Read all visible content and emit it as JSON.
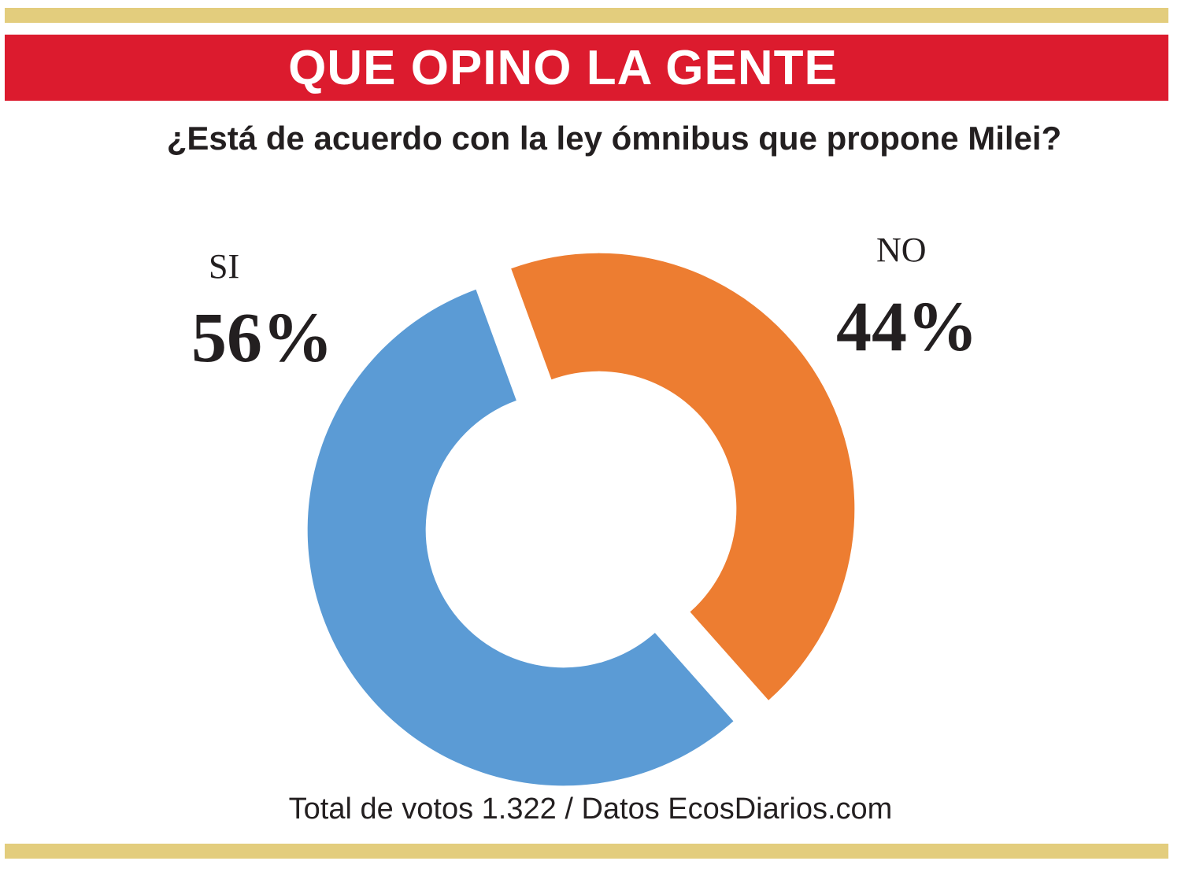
{
  "header": {
    "title": "QUE OPINO LA GENTE"
  },
  "question": "¿Está de acuerdo con la ley ómnibus que propone Milei?",
  "footer": "Total de votos 1.322 / Datos EcosDiarios.com",
  "colors": {
    "header_band": "#dc1b2e",
    "gold_rule": "#e3cd7d",
    "si": "#5b9bd5",
    "no": "#ed7d31"
  },
  "chart_data": {
    "type": "pie",
    "title": "¿Está de acuerdo con la ley ómnibus que propone Milei?",
    "categories": [
      "SI",
      "NO"
    ],
    "values": [
      56,
      44
    ],
    "value_labels": [
      "56%",
      "44%"
    ],
    "unit": "%",
    "colors": [
      "#5b9bd5",
      "#ed7d31"
    ],
    "total_votes": "1.322"
  }
}
